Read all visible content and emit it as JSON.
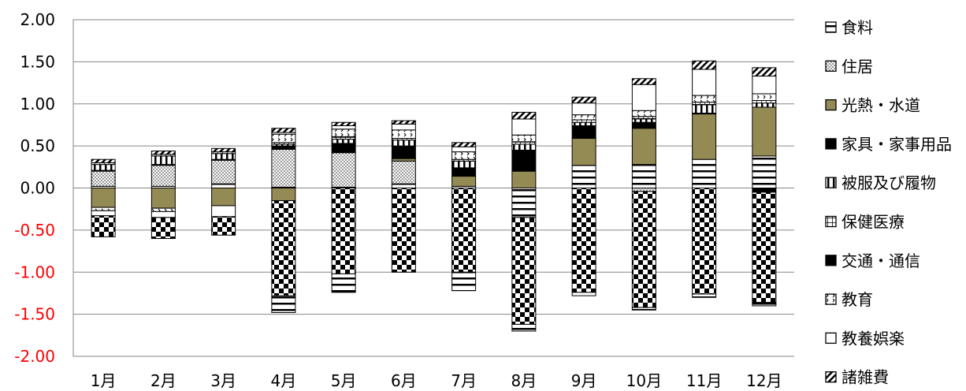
{
  "chart_data": {
    "type": "bar",
    "stacked": true,
    "categories": [
      "1月",
      "2月",
      "3月",
      "4月",
      "5月",
      "6月",
      "7月",
      "8月",
      "9月",
      "10月",
      "11月",
      "12月"
    ],
    "ylim": [
      -2.0,
      2.0
    ],
    "yticks": [
      2.0,
      1.5,
      1.0,
      0.5,
      0.0,
      -0.5,
      -1.0,
      -1.5,
      -2.0
    ],
    "ytick_labels": [
      "2.00",
      "1.50",
      "1.00",
      "0.50",
      "0.00",
      "-0.50",
      "-1.00",
      "-1.50",
      "-2.00"
    ],
    "negative_tick_color": "#ff0000",
    "positive_tick_color": "#000000",
    "grid": true,
    "legend_position": "right",
    "series": [
      {
        "name": "食料",
        "pattern": "hlines",
        "values": [
          0.02,
          0.02,
          0.05,
          0.01,
          0.01,
          0.05,
          0.02,
          -0.35,
          0.27,
          0.28,
          0.34,
          0.38
        ]
      },
      {
        "name": "住居",
        "pattern": "dots",
        "values": [
          0.18,
          0.25,
          0.28,
          0.45,
          0.41,
          0.27,
          0.0,
          0.0,
          0.0,
          -0.04,
          0.0,
          0.0
        ]
      },
      {
        "name": "光熱・水道",
        "pattern": "olive",
        "values": [
          -0.23,
          -0.24,
          -0.21,
          -0.15,
          0.0,
          0.03,
          0.12,
          0.2,
          0.32,
          0.43,
          0.54,
          0.58
        ]
      },
      {
        "name": "家具・家事用品",
        "pattern": "black",
        "values": [
          0.01,
          0.01,
          0.01,
          0.04,
          0.11,
          0.15,
          0.1,
          0.25,
          0.15,
          0.07,
          0.01,
          -0.05
        ]
      },
      {
        "name": "被服及び履物",
        "pattern": "vlines",
        "values": [
          0.07,
          0.1,
          0.07,
          0.02,
          0.05,
          0.07,
          0.08,
          0.07,
          0.04,
          0.04,
          0.1,
          0.05
        ]
      },
      {
        "name": "保健医療",
        "pattern": "grid",
        "values": [
          0.02,
          0.02,
          0.02,
          0.02,
          0.03,
          0.02,
          0.02,
          0.03,
          0.03,
          0.03,
          0.03,
          0.03
        ]
      },
      {
        "name": "交通・通信",
        "pattern": "black",
        "values": [
          0.0,
          0.0,
          0.0,
          0.0,
          0.0,
          0.0,
          0.0,
          0.0,
          0.0,
          0.0,
          0.0,
          0.0
        ]
      },
      {
        "name": "教育",
        "pattern": "smallchev",
        "values": [
          -0.04,
          -0.04,
          0.0,
          0.1,
          0.09,
          0.1,
          0.09,
          0.08,
          0.06,
          0.07,
          0.08,
          0.08
        ]
      },
      {
        "name": "教養娯楽",
        "pattern": "white",
        "values": [
          -0.06,
          -0.07,
          -0.13,
          0.02,
          0.04,
          0.07,
          0.06,
          0.19,
          0.14,
          0.31,
          0.31,
          0.21
        ]
      },
      {
        "name": "諸雑費",
        "pattern": "diag",
        "values": [
          0.04,
          0.04,
          0.04,
          0.05,
          0.04,
          0.04,
          0.05,
          0.08,
          0.07,
          0.07,
          0.1,
          0.1
        ]
      },
      {
        "name": "",
        "pattern": "checker",
        "values": [
          -0.25,
          -0.25,
          -0.22,
          -1.13,
          -1.02,
          -1.0,
          -1.0,
          -1.27,
          -1.24,
          -1.38,
          -1.26,
          -1.31
        ]
      },
      {
        "name": "",
        "pattern": "hlines",
        "values": [
          0.0,
          0.0,
          0.0,
          -0.2,
          -0.22,
          0.0,
          -0.22,
          -0.08,
          -0.04,
          -0.03,
          -0.04,
          -0.04
        ]
      }
    ]
  },
  "legend_glyphs": [
    "⊟",
    "▦",
    "■",
    "■",
    "◫",
    "◧",
    "◩",
    "◪",
    "□",
    "◩"
  ]
}
